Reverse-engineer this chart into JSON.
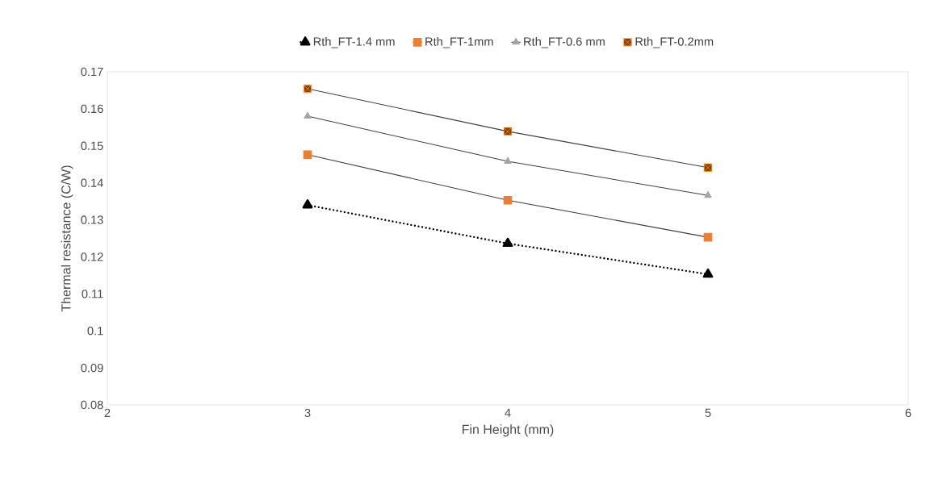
{
  "chart_data": {
    "type": "line",
    "xlabel": "Fin Height (mm)",
    "ylabel": "Thermal resistance (C/W)",
    "x": [
      3,
      4,
      5
    ],
    "xlim": [
      2,
      6
    ],
    "xticks": [
      2,
      3,
      4,
      5,
      6
    ],
    "ylim": [
      0.08,
      0.17
    ],
    "yticks": [
      0.08,
      0.09,
      0.1,
      0.11,
      0.12,
      0.13,
      0.14,
      0.15,
      0.16,
      0.17
    ],
    "legend": "top",
    "series": [
      {
        "name": "Rth_FT-1.4 mm",
        "color": "#000000",
        "marker": "triangle",
        "line_style": "dotted",
        "values": [
          0.134,
          0.1236,
          0.1153
        ]
      },
      {
        "name": "Rth_FT-1mm",
        "color": "#ed7d31",
        "marker": "square",
        "line_style": "solid",
        "values": [
          0.1476,
          0.1353,
          0.1253
        ]
      },
      {
        "name": "Rth_FT-0.6 mm",
        "color": "#a5a5a5",
        "marker": "triangle",
        "line_style": "solid",
        "values": [
          0.158,
          0.1458,
          0.1366
        ]
      },
      {
        "name": "Rth_FT-0.2mm",
        "color": "#843c0c",
        "marker": "square",
        "line_style": "solid",
        "values": [
          0.1654,
          0.1539,
          0.1441
        ]
      }
    ]
  }
}
